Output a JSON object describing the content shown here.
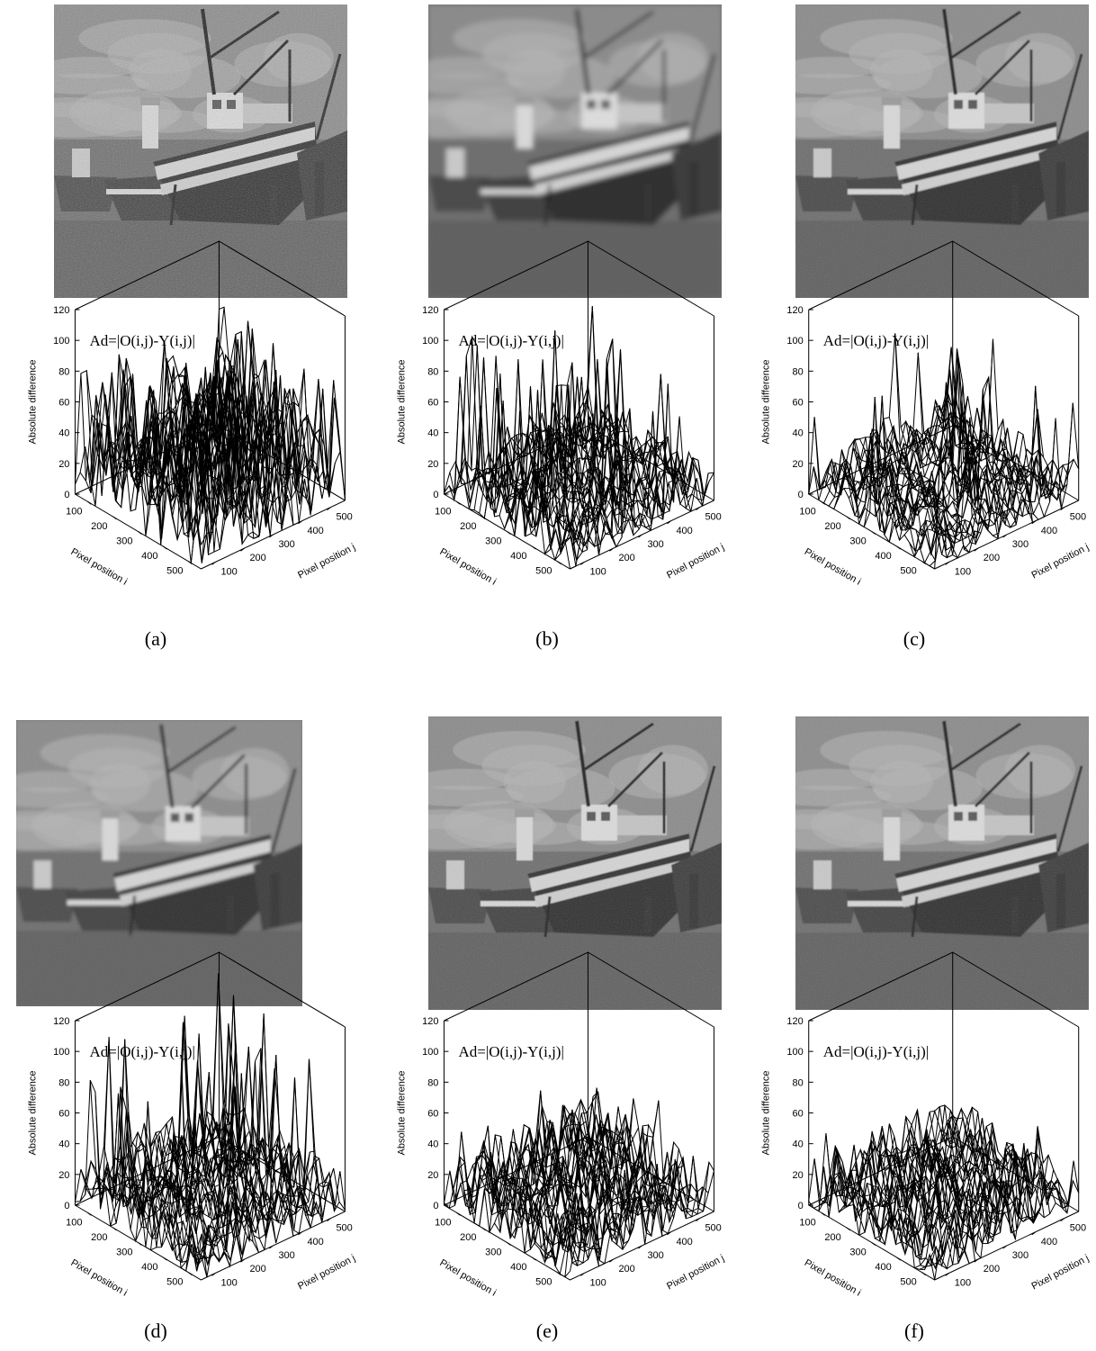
{
  "figure": {
    "panels": [
      {
        "id": "a",
        "caption": "(a)",
        "image_alt": "restored-boat-image",
        "image_blur": 0.2,
        "noise": 0.45,
        "chart_index": 0
      },
      {
        "id": "b",
        "caption": "(b)",
        "image_alt": "restored-boat-image",
        "image_blur": 3.0,
        "noise": 0.05,
        "chart_index": 1
      },
      {
        "id": "c",
        "caption": "(c)",
        "image_alt": "restored-boat-image",
        "image_blur": 0.9,
        "noise": 0.22,
        "chart_index": 2
      },
      {
        "id": "d",
        "caption": "(d)",
        "image_alt": "restored-boat-image",
        "image_blur": 1.6,
        "noise": 0.18,
        "chart_index": 3
      },
      {
        "id": "e",
        "caption": "(e)",
        "image_alt": "restored-boat-image",
        "image_blur": 0.6,
        "noise": 0.25,
        "chart_index": 4
      },
      {
        "id": "f",
        "caption": "(f)",
        "image_alt": "restored-boat-image",
        "image_blur": 0.7,
        "noise": 0.24,
        "chart_index": 5
      }
    ]
  },
  "chart_data": [
    {
      "type": "surface3d",
      "annotation": "Ad=|O(i,j)-Y(i,j)|",
      "zlabel": "Absolute difference",
      "xlabel": "Pixel position i",
      "ylabel": "Pixel position j",
      "zlim": [
        0,
        120
      ],
      "zticks": [
        0,
        20,
        40,
        60,
        80,
        100,
        120
      ],
      "iticks": [
        100,
        200,
        300,
        400,
        500
      ],
      "jticks": [
        100,
        200,
        300,
        400,
        500
      ],
      "surface": {
        "seed": 11,
        "base": 22,
        "amp": 30,
        "spike_prob": 0.18,
        "spike_max": 88
      }
    },
    {
      "type": "surface3d",
      "annotation": "Ad=|O(i,j)-Y(i,j)|",
      "zlabel": "Absolute difference",
      "xlabel": "Pixel position i",
      "ylabel": "Pixel position j",
      "zlim": [
        0,
        120
      ],
      "zticks": [
        0,
        20,
        40,
        60,
        80,
        100,
        120
      ],
      "iticks": [
        100,
        200,
        300,
        400,
        500
      ],
      "jticks": [
        100,
        200,
        300,
        400,
        500
      ],
      "surface": {
        "seed": 23,
        "base": 10,
        "amp": 18,
        "spike_prob": 0.05,
        "spike_max": 100
      }
    },
    {
      "type": "surface3d",
      "annotation": "Ad=|O(i,j)-Y(i,j)|",
      "zlabel": "Absolute difference",
      "xlabel": "Pixel position i",
      "ylabel": "Pixel position j",
      "zlim": [
        0,
        120
      ],
      "zticks": [
        0,
        20,
        40,
        60,
        80,
        100,
        120
      ],
      "iticks": [
        100,
        200,
        300,
        400,
        500
      ],
      "jticks": [
        100,
        200,
        300,
        400,
        500
      ],
      "surface": {
        "seed": 37,
        "base": 8,
        "amp": 18,
        "spike_prob": 0.04,
        "spike_max": 85
      }
    },
    {
      "type": "surface3d",
      "annotation": "Ad=|O(i,j)-Y(i,j)|",
      "zlabel": "Absolute difference",
      "xlabel": "Pixel position i",
      "ylabel": "Pixel position j",
      "zlim": [
        0,
        120
      ],
      "zticks": [
        0,
        20,
        40,
        60,
        80,
        100,
        120
      ],
      "iticks": [
        100,
        200,
        300,
        400,
        500
      ],
      "jticks": [
        100,
        200,
        300,
        400,
        500
      ],
      "surface": {
        "seed": 51,
        "base": 12,
        "amp": 20,
        "spike_prob": 0.07,
        "spike_max": 110
      }
    },
    {
      "type": "surface3d",
      "annotation": "Ad=|O(i,j)-Y(i,j)|",
      "zlabel": "Absolute difference",
      "xlabel": "Pixel position i",
      "ylabel": "Pixel position j",
      "zlim": [
        0,
        120
      ],
      "zticks": [
        0,
        20,
        40,
        60,
        80,
        100,
        120
      ],
      "iticks": [
        100,
        200,
        300,
        400,
        500
      ],
      "jticks": [
        100,
        200,
        300,
        400,
        500
      ],
      "surface": {
        "seed": 67,
        "base": 12,
        "amp": 22,
        "spike_prob": 0.03,
        "spike_max": 52
      }
    },
    {
      "type": "surface3d",
      "annotation": "Ad=|O(i,j)-Y(i,j)|",
      "zlabel": "Absolute difference",
      "xlabel": "Pixel position i",
      "ylabel": "Pixel position j",
      "zlim": [
        0,
        120
      ],
      "zticks": [
        0,
        20,
        40,
        60,
        80,
        100,
        120
      ],
      "iticks": [
        100,
        200,
        300,
        400,
        500
      ],
      "jticks": [
        100,
        200,
        300,
        400,
        500
      ],
      "surface": {
        "seed": 79,
        "base": 12,
        "amp": 20,
        "spike_prob": 0.03,
        "spike_max": 48
      }
    }
  ]
}
